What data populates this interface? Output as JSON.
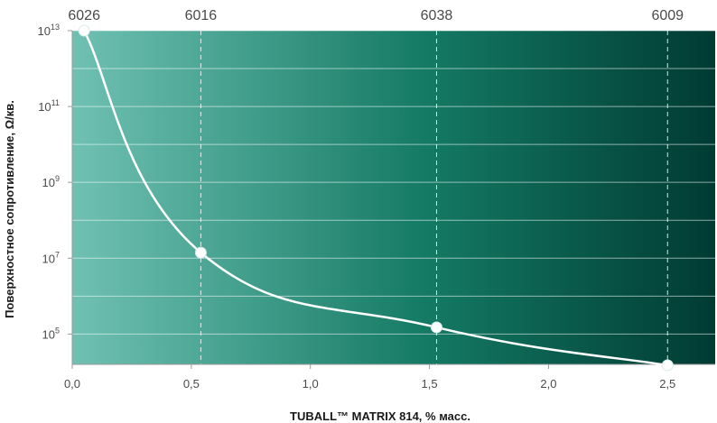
{
  "chart_data": {
    "type": "line",
    "xlabel": "TUBALL™ MATRIX 814, % масс.",
    "ylabel": "Поверхностное сопротивление, Ω/кв.",
    "x_ticks": [
      "0,0",
      "0,5",
      "1,0",
      "1,5",
      "2,0",
      "2,5"
    ],
    "y_ticks": [
      {
        "base": "10",
        "exp": "13"
      },
      {
        "base": "10",
        "exp": "11"
      },
      {
        "base": "10",
        "exp": "9"
      },
      {
        "base": "10",
        "exp": "7"
      },
      {
        "base": "10",
        "exp": "5"
      }
    ],
    "xlim": [
      0,
      2.7
    ],
    "ylim_log10": [
      4.2,
      13
    ],
    "y_scale": "log",
    "grid": "horizontal",
    "background_gradient": [
      "#70c1b3",
      "#147a64",
      "#003b33"
    ],
    "line_color": "#ffffff",
    "points": [
      {
        "x": 0.05,
        "y": 10000000000000.0,
        "label": "6026"
      },
      {
        "x": 0.54,
        "y": 14000000.0,
        "label": "6016"
      },
      {
        "x": 1.53,
        "y": 150000.0,
        "label": "6038"
      },
      {
        "x": 2.5,
        "y": 15000.0,
        "label": "6009"
      }
    ]
  }
}
